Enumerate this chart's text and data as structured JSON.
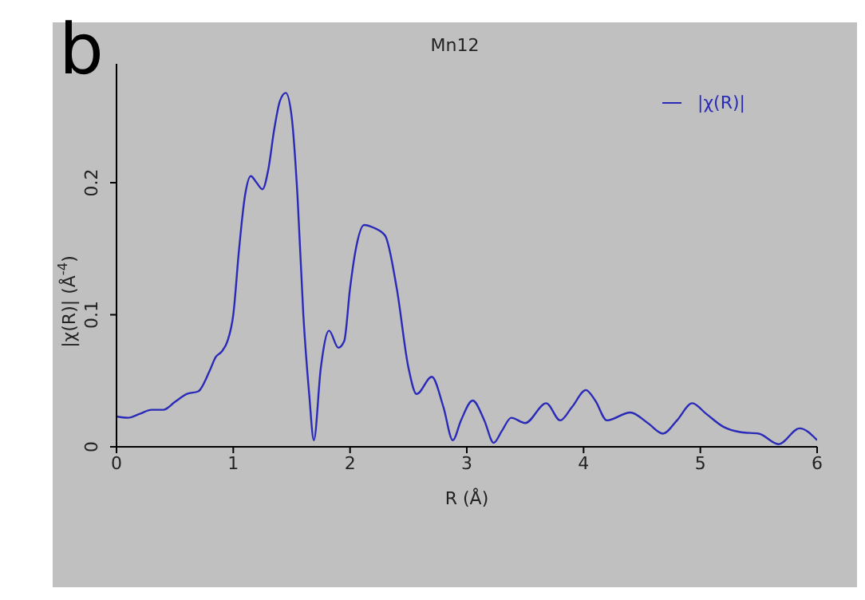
{
  "chart_data": {
    "type": "line",
    "title": "Mn12",
    "xlabel": "R (Å)",
    "ylabel": "|χ(R)| (Å$^{-4}$)",
    "annotations": [
      "b"
    ],
    "x": [
      0,
      0.1,
      0.2,
      0.3,
      0.4,
      0.5,
      0.6,
      0.7,
      0.8,
      0.85,
      0.9,
      0.95,
      1.0,
      1.05,
      1.1,
      1.15,
      1.2,
      1.25,
      1.3,
      1.35,
      1.4,
      1.45,
      1.5,
      1.55,
      1.6,
      1.65,
      1.69,
      1.75,
      1.82,
      1.9,
      1.95,
      2.0,
      2.05,
      2.12,
      2.2,
      2.3,
      2.4,
      2.5,
      2.57,
      2.7,
      2.8,
      2.88,
      2.95,
      3.05,
      3.15,
      3.23,
      3.3,
      3.38,
      3.5,
      3.68,
      3.8,
      3.9,
      4.02,
      4.1,
      4.2,
      4.4,
      4.55,
      4.68,
      4.8,
      4.93,
      5.05,
      5.2,
      5.35,
      5.5,
      5.67,
      5.85,
      6.0
    ],
    "series": [
      {
        "name": "|χ(R)|",
        "color": "#2a2ab8",
        "values": [
          0.023,
          0.022,
          0.025,
          0.028,
          0.028,
          0.034,
          0.04,
          0.042,
          0.058,
          0.068,
          0.072,
          0.08,
          0.1,
          0.15,
          0.19,
          0.205,
          0.2,
          0.195,
          0.21,
          0.24,
          0.262,
          0.268,
          0.25,
          0.19,
          0.1,
          0.04,
          0.005,
          0.06,
          0.088,
          0.075,
          0.08,
          0.12,
          0.15,
          0.168,
          0.166,
          0.16,
          0.12,
          0.06,
          0.04,
          0.053,
          0.03,
          0.005,
          0.02,
          0.035,
          0.02,
          0.003,
          0.012,
          0.022,
          0.018,
          0.033,
          0.02,
          0.03,
          0.043,
          0.035,
          0.02,
          0.026,
          0.018,
          0.01,
          0.02,
          0.033,
          0.025,
          0.015,
          0.011,
          0.01,
          0.002,
          0.014,
          0.005
        ]
      }
    ],
    "xlim": [
      0,
      6
    ],
    "xticks": [
      0,
      1,
      2,
      3,
      4,
      5,
      6
    ],
    "ylim": [
      0,
      0.29
    ],
    "yticks": [
      0,
      0.1,
      0.2
    ],
    "grid": false,
    "legend": "top right",
    "marker": "none",
    "line_style": "solid"
  }
}
